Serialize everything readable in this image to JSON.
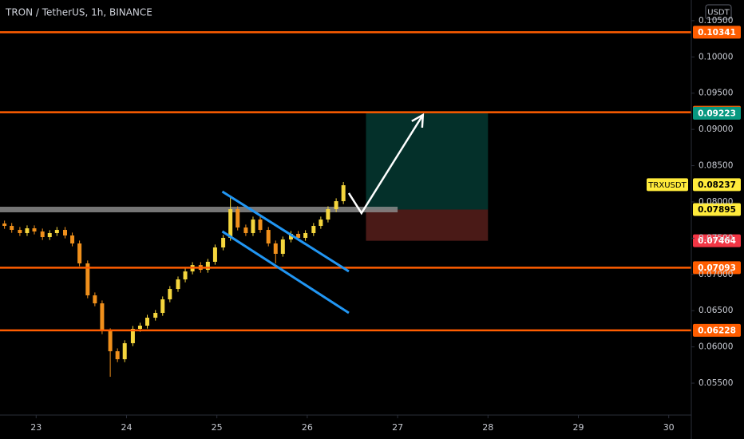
{
  "chart_data": {
    "type": "candlestick",
    "title": "TRON / TetherUS, 1h, BINANCE",
    "currency": "USDT",
    "xlim": [
      22.6,
      30.25
    ],
    "xticks": [
      23,
      24,
      25,
      26,
      27,
      28,
      29,
      30
    ],
    "ylim": [
      0.0506,
      0.10785
    ],
    "yticks": [
      {
        "value": 0.055,
        "label": "0.05500"
      },
      {
        "value": 0.06,
        "label": "0.06000"
      },
      {
        "value": 0.065,
        "label": "0.06500"
      },
      {
        "value": 0.07,
        "label": "0.07000"
      },
      {
        "value": 0.075,
        "label": "0.07500"
      },
      {
        "value": 0.08,
        "label": "0.08000"
      },
      {
        "value": 0.085,
        "label": "0.08500"
      },
      {
        "value": 0.09,
        "label": "0.09000"
      },
      {
        "value": 0.095,
        "label": "0.09500"
      },
      {
        "value": 0.1,
        "label": "0.10000"
      },
      {
        "value": 0.105,
        "label": "0.10500"
      }
    ],
    "up_color": "#f5d63d",
    "down_color": "#f0901c",
    "candles": {
      "x": [
        22.65,
        22.73,
        22.82,
        22.9,
        22.98,
        23.07,
        23.15,
        23.23,
        23.32,
        23.4,
        23.48,
        23.57,
        23.65,
        23.73,
        23.82,
        23.9,
        23.98,
        24.07,
        24.15,
        24.23,
        24.32,
        24.4,
        24.48,
        24.57,
        24.65,
        24.73,
        24.82,
        24.9,
        24.98,
        25.07,
        25.15,
        25.23,
        25.32,
        25.4,
        25.48,
        25.57,
        25.65,
        25.73,
        25.82,
        25.9,
        25.98,
        26.07,
        26.15,
        26.23,
        26.32,
        26.4
      ],
      "open": [
        0.07702,
        0.07669,
        0.07614,
        0.0757,
        0.07636,
        0.07592,
        0.07515,
        0.0757,
        0.07614,
        0.07537,
        0.07427,
        0.07152,
        0.06711,
        0.06601,
        0.06216,
        0.0594,
        0.0583,
        0.06051,
        0.06249,
        0.06293,
        0.06403,
        0.06469,
        0.06656,
        0.06799,
        0.06931,
        0.07041,
        0.07129,
        0.07063,
        0.07174,
        0.07372,
        0.07504,
        0.079,
        0.07647,
        0.0757,
        0.07757,
        0.07614,
        0.07427,
        0.07284,
        0.07482,
        0.07559,
        0.07504,
        0.0757,
        0.07669,
        0.07757,
        0.079,
        0.0801
      ],
      "high": [
        0.07742,
        0.07709,
        0.07654,
        0.07676,
        0.07676,
        0.07632,
        0.0761,
        0.07654,
        0.07654,
        0.07577,
        0.07467,
        0.07192,
        0.06751,
        0.06641,
        0.06256,
        0.0598,
        0.06091,
        0.06289,
        0.06333,
        0.06443,
        0.06509,
        0.06696,
        0.06839,
        0.06971,
        0.07081,
        0.07169,
        0.07169,
        0.07214,
        0.07412,
        0.07544,
        0.08087,
        0.0794,
        0.07687,
        0.07797,
        0.07797,
        0.07654,
        0.07467,
        0.07522,
        0.07599,
        0.07599,
        0.0761,
        0.07709,
        0.07797,
        0.0794,
        0.0805,
        0.08275
      ],
      "low": [
        0.07629,
        0.07574,
        0.0753,
        0.0753,
        0.07552,
        0.07475,
        0.07475,
        0.0753,
        0.07497,
        0.07387,
        0.07112,
        0.06671,
        0.06561,
        0.06176,
        0.05588,
        0.0579,
        0.0579,
        0.06011,
        0.06209,
        0.06253,
        0.06363,
        0.06429,
        0.06616,
        0.06759,
        0.06891,
        0.07001,
        0.07023,
        0.07023,
        0.07134,
        0.07332,
        0.07464,
        0.07607,
        0.0753,
        0.0753,
        0.07574,
        0.07387,
        0.07152,
        0.07244,
        0.07442,
        0.07464,
        0.07464,
        0.0753,
        0.07629,
        0.07717,
        0.0786,
        0.0797
      ],
      "close": [
        0.07669,
        0.07614,
        0.0757,
        0.07636,
        0.07592,
        0.07515,
        0.0757,
        0.07614,
        0.07537,
        0.07427,
        0.07152,
        0.06711,
        0.06601,
        0.06216,
        0.0594,
        0.0583,
        0.06051,
        0.06249,
        0.06293,
        0.06403,
        0.06469,
        0.06656,
        0.06799,
        0.06931,
        0.07041,
        0.07129,
        0.07063,
        0.07174,
        0.07372,
        0.07504,
        0.079,
        0.07647,
        0.0757,
        0.07757,
        0.07614,
        0.07427,
        0.07284,
        0.07482,
        0.07559,
        0.07504,
        0.0757,
        0.07669,
        0.07757,
        0.079,
        0.0801,
        0.0823
      ]
    },
    "levels": [
      {
        "value": 0.10341,
        "color": "#ff5d00"
      },
      {
        "value": 0.09237,
        "color": "#ff5d00"
      },
      {
        "value": 0.07093,
        "color": "#ff5d00"
      },
      {
        "value": 0.06228,
        "color": "#ff5d00"
      }
    ],
    "position": {
      "x": [
        26.65,
        28.0
      ],
      "entry": 0.07895,
      "target": 0.09223,
      "stop": 0.07464,
      "entry_color": "#ffeb3b",
      "target_color": "#089981",
      "stop_color": "#f23645",
      "profit_fill": "#04302a",
      "loss_fill": "#4a1a17",
      "entry_line_x": [
        22.6,
        27.0
      ]
    },
    "last_price": {
      "name": "TRXUSDT",
      "value": 0.08237,
      "color": "#ffeb3b"
    },
    "trendlines": [
      {
        "x": [
          25.06,
          26.46
        ],
        "y": [
          0.08143,
          0.07042
        ],
        "color": "#2196f3"
      },
      {
        "x": [
          25.06,
          26.46
        ],
        "y": [
          0.07593,
          0.06469
        ],
        "color": "#2196f3"
      }
    ],
    "arrow": {
      "x": [
        26.46,
        26.6,
        27.28
      ],
      "y": [
        0.08121,
        0.07845,
        0.092
      ],
      "color": "#ffffff"
    }
  }
}
